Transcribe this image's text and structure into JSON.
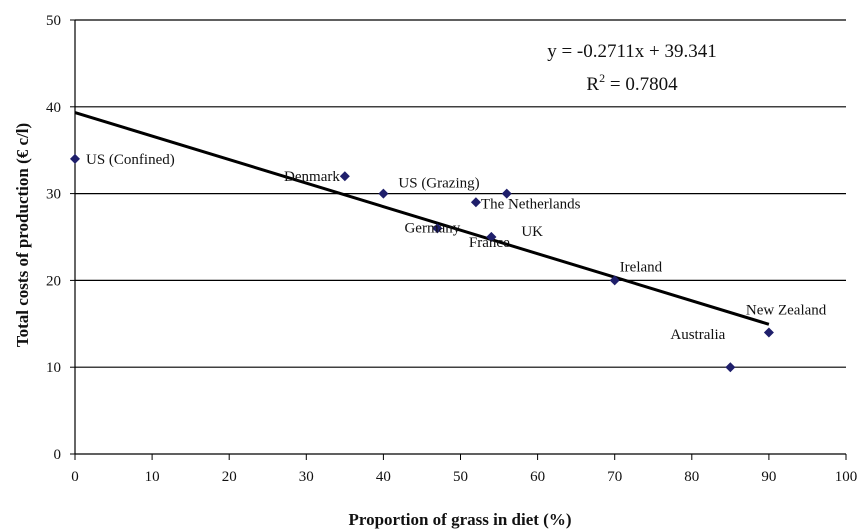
{
  "chart_data": {
    "type": "scatter",
    "title": "",
    "xlabel": "Proportion of grass in diet (%)",
    "ylabel": "Total costs of production (€ c/l)",
    "xlim": [
      0,
      100
    ],
    "ylim": [
      0,
      50
    ],
    "xticks": [
      "0",
      "10",
      "20",
      "30",
      "40",
      "50",
      "60",
      "70",
      "80",
      "90",
      "100"
    ],
    "yticks": [
      "0",
      "10",
      "20",
      "30",
      "40",
      "50"
    ],
    "grid": "horizontal",
    "points": [
      {
        "label": "US (Confined)",
        "x": 0,
        "y": 34
      },
      {
        "label": "Denmark",
        "x": 35,
        "y": 32
      },
      {
        "label": "US (Grazing)",
        "x": 40,
        "y": 30
      },
      {
        "label": "Germany",
        "x": 47,
        "y": 26
      },
      {
        "label": "The Netherlands",
        "x": 52,
        "y": 29
      },
      {
        "label": "",
        "x": 56,
        "y": 30
      },
      {
        "label": "France",
        "x": 54,
        "y": 25
      },
      {
        "label": "UK",
        "x": 54,
        "y": 25
      },
      {
        "label": "Ireland",
        "x": 70,
        "y": 20
      },
      {
        "label": "Australia",
        "x": 85,
        "y": 10
      },
      {
        "label": "New Zealand",
        "x": 90,
        "y": 14
      }
    ],
    "trendline": {
      "type": "linear",
      "slope": -0.2711,
      "intercept": 39.341,
      "x_range": [
        0,
        90
      ],
      "equation": "y = -0.2711x + 39.341",
      "r2_prefix": "R",
      "r2_sup": "2",
      "r2_value": " = 0.7804"
    },
    "colors": {
      "marker": "#1f1f6b",
      "line": "#000000",
      "grid": "#000000"
    }
  }
}
